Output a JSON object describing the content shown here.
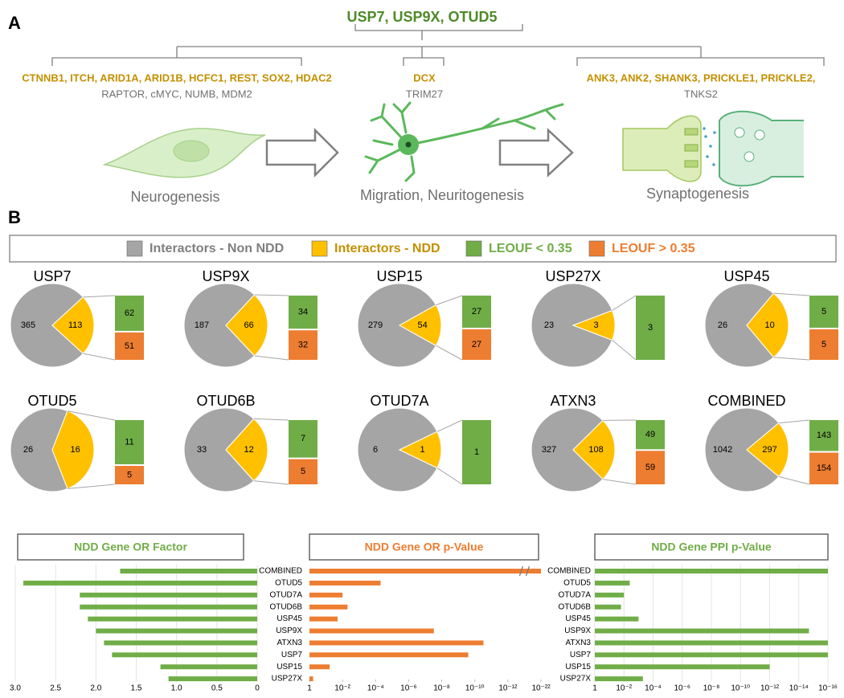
{
  "panel_a": {
    "label": "A",
    "regulators": "USP7, USP9X, OTUD5",
    "stages": [
      {
        "ndd_genes": "CTNNB1, ITCH, ARID1A, ARID1B, HCFC1, REST, SOX2, HDAC2",
        "other_genes": "RAPTOR, cMYC, NUMB, MDM2",
        "name": "Neurogenesis"
      },
      {
        "ndd_genes": "DCX",
        "other_genes": "TRIM27",
        "name": "Migration, Neuritogenesis"
      },
      {
        "ndd_genes": "ANK3, ANK2, SHANK3, PRICKLE1, PRICKLE2,",
        "other_genes": "TNKS2",
        "name": "Synaptogenesis"
      }
    ]
  },
  "panel_b": {
    "label": "B",
    "legend": [
      {
        "name": "Interactors - Non NDD",
        "color": "#a5a5a5"
      },
      {
        "name": "Interactors - NDD",
        "color": "#ffc000"
      },
      {
        "name": "LEOUF < 0.35",
        "color": "#70ad47"
      },
      {
        "name": "LEOUF > 0.35",
        "color": "#ed7d31"
      }
    ]
  },
  "chart_data": [
    {
      "type": "pie",
      "title": "USP7",
      "values": [
        365,
        113
      ],
      "breakdown": [
        62,
        51
      ]
    },
    {
      "type": "pie",
      "title": "USP9X",
      "values": [
        187,
        66
      ],
      "breakdown": [
        34,
        32
      ]
    },
    {
      "type": "pie",
      "title": "USP15",
      "values": [
        279,
        54
      ],
      "breakdown": [
        27,
        27
      ]
    },
    {
      "type": "pie",
      "title": "USP27X",
      "values": [
        23,
        3
      ],
      "breakdown": [
        3
      ]
    },
    {
      "type": "pie",
      "title": "USP45",
      "values": [
        26,
        10
      ],
      "breakdown": [
        5,
        5
      ]
    },
    {
      "type": "pie",
      "title": "OTUD5",
      "values": [
        26,
        16
      ],
      "breakdown": [
        11,
        5
      ]
    },
    {
      "type": "pie",
      "title": "OTUD6B",
      "values": [
        33,
        12
      ],
      "breakdown": [
        7,
        5
      ]
    },
    {
      "type": "pie",
      "title": "OTUD7A",
      "values": [
        6,
        1
      ],
      "breakdown": [
        1
      ]
    },
    {
      "type": "pie",
      "title": "ATXN3",
      "values": [
        327,
        108
      ],
      "breakdown": [
        49,
        59
      ]
    },
    {
      "type": "pie",
      "title": "COMBINED",
      "values": [
        1042,
        297
      ],
      "breakdown": [
        143,
        154
      ]
    },
    {
      "type": "bar",
      "title": "NDD Gene OR Factor",
      "color": "#70ad47",
      "categories": [
        "COMBINED",
        "OTUD5",
        "OTUD7A",
        "OTUD6B",
        "USP45",
        "USP9X",
        "ATXN3",
        "USP7",
        "USP15",
        "USP27X"
      ],
      "values": [
        1.7,
        2.9,
        2.2,
        2.2,
        2.1,
        2.0,
        1.9,
        1.8,
        1.2,
        1.1
      ],
      "xlim": [
        3,
        0
      ],
      "xticks": [
        {
          "value": 3,
          "label": "3.0"
        },
        2.5,
        {
          "value": 2,
          "label": "2.0"
        },
        1.5,
        {
          "value": 1,
          "label": "1.0"
        },
        0.5,
        0
      ],
      "grid": true
    },
    {
      "type": "bar",
      "title": "NDD Gene OR p-Value",
      "color": "#ed7d31",
      "log": true,
      "values": [
        1e-22,
        5e-05,
        0.01,
        0.005,
        0.02,
        3e-08,
        3e-11,
        2.5e-10,
        0.06,
        0.6
      ],
      "xlim": [
        1,
        1e-22
      ],
      "xticks": [
        1,
        {
          "value": 0.01,
          "label": "10⁻²"
        },
        {
          "value": 0.0001,
          "label": "10⁻⁴"
        },
        {
          "value": 1e-06,
          "label": "10⁻⁶"
        },
        {
          "value": 1e-08,
          "label": "10⁻⁸"
        },
        {
          "value": 1e-10,
          "label": "10⁻¹⁰"
        },
        {
          "value": 1e-12,
          "label": "10⁻¹²"
        },
        {
          "value": 1e-22,
          "label": "10⁻²²"
        }
      ],
      "grid": false
    },
    {
      "type": "bar",
      "title": "NDD Gene PPI p-Value",
      "color": "#70ad47",
      "log": true,
      "categories": [
        "COMBINED",
        "OTUD5",
        "OTUD7A",
        "OTUD6B",
        "USP45",
        "USP9X",
        "ATXN3",
        "USP7",
        "USP15",
        "USP27X"
      ],
      "values": [
        1e-16,
        0.004,
        0.01,
        0.016,
        0.001,
        2e-15,
        1e-16,
        1e-16,
        1e-12,
        0.0005
      ],
      "xlim": [
        1,
        1e-16
      ],
      "xticks": [
        1,
        {
          "value": 0.01,
          "label": "10⁻²"
        },
        {
          "value": 0.0001,
          "label": "10⁻⁴"
        },
        {
          "value": 1e-06,
          "label": "10⁻⁶"
        },
        {
          "value": 1e-08,
          "label": "10⁻⁸"
        },
        {
          "value": 1e-10,
          "label": "10⁻¹⁰"
        },
        {
          "value": 1e-12,
          "label": "10⁻¹²"
        },
        {
          "value": 1e-14,
          "label": "10⁻¹⁴"
        },
        {
          "value": 1e-16,
          "label": "10⁻¹⁶"
        }
      ],
      "grid": true
    }
  ]
}
